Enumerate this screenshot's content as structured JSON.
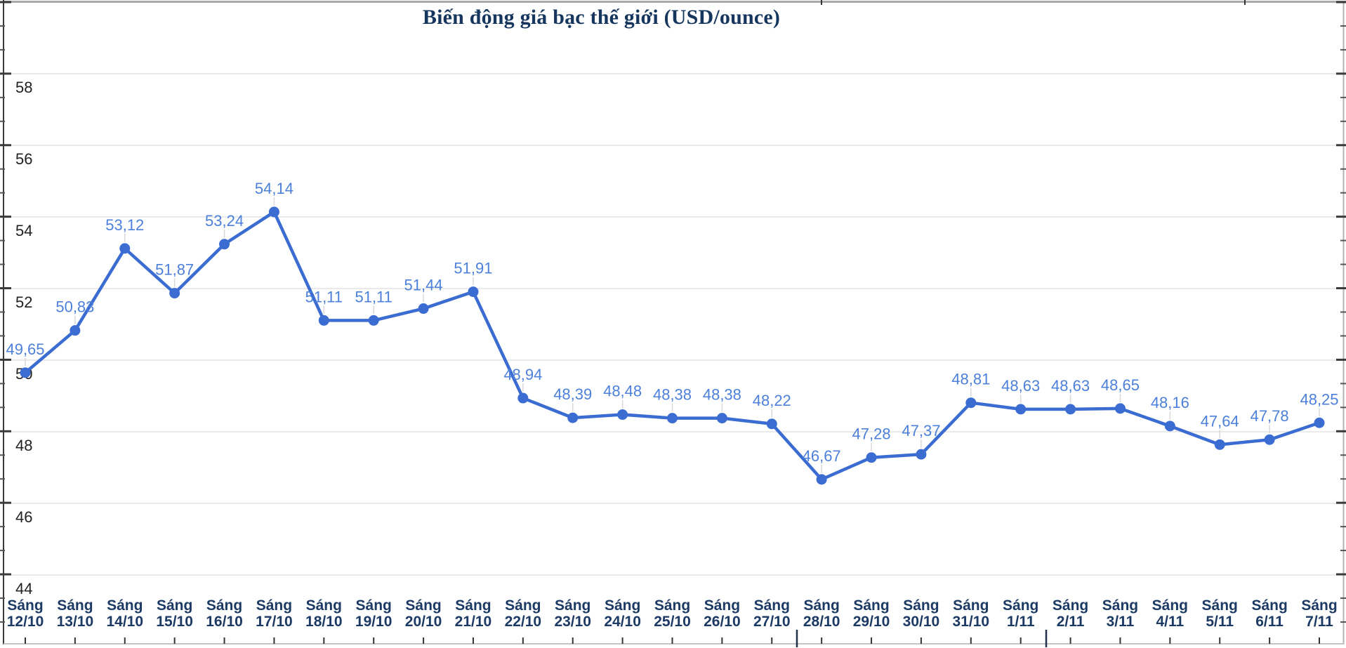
{
  "chart_data": {
    "type": "line",
    "title": "Biến động giá bạc thế giới (USD/ounce)",
    "category_prefix": "Sáng",
    "categories": [
      "12/10",
      "13/10",
      "14/10",
      "15/10",
      "16/10",
      "17/10",
      "18/10",
      "19/10",
      "20/10",
      "21/10",
      "22/10",
      "23/10",
      "24/10",
      "25/10",
      "26/10",
      "27/10",
      "28/10",
      "29/10",
      "30/10",
      "31/10",
      "1/11",
      "2/11",
      "3/11",
      "4/11",
      "5/11",
      "6/11",
      "7/11"
    ],
    "values": [
      49.65,
      50.83,
      53.12,
      51.87,
      53.24,
      54.14,
      51.11,
      51.11,
      51.44,
      51.91,
      48.94,
      48.39,
      48.48,
      48.38,
      48.38,
      48.22,
      46.67,
      47.28,
      47.37,
      48.81,
      48.63,
      48.63,
      48.65,
      48.16,
      47.64,
      47.78,
      48.25
    ],
    "value_labels": [
      "49,65",
      "50,83",
      "53,12",
      "51,87",
      "53,24",
      "54,14",
      "51,11",
      "51,11",
      "51,44",
      "51,91",
      "48,94",
      "48,39",
      "48,48",
      "48,38",
      "48,38",
      "48,22",
      "46,67",
      "47,28",
      "47,37",
      "48,81",
      "48,63",
      "48,63",
      "48,65",
      "48,16",
      "47,64",
      "47,78",
      "48,25"
    ],
    "y_ticks": [
      58,
      56,
      54,
      52,
      50,
      48,
      46,
      44
    ],
    "ylim": [
      42,
      60
    ],
    "xlabel": "",
    "ylabel": "",
    "legend": "none",
    "grid": "horizontal-major",
    "colors": {
      "line": "#3b6cd1",
      "point": "#3b6cd1",
      "value_label": "#4d80da",
      "title": "#17365d",
      "x_label": "#1c3a63",
      "y_label": "#222222",
      "grid_line": "#e3e3e3",
      "leader_line": "#d9d9d9",
      "axis_dark": "#3a3a3a",
      "axis_light": "#b3b3b3",
      "baseline": "#c4c4c4",
      "tick_dark": "#333333"
    }
  }
}
